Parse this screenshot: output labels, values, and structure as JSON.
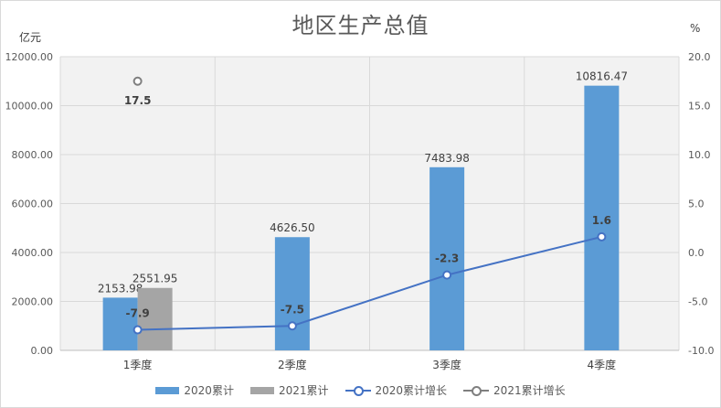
{
  "chart_data": {
    "type": "bar",
    "title": "地区生产总值",
    "y_unit_left": "亿元",
    "y_unit_right": "%",
    "categories": [
      "1季度",
      "2季度",
      "3季度",
      "4季度"
    ],
    "ylim_left": [
      0,
      12000
    ],
    "ylim_right": [
      -10,
      20
    ],
    "left_ticks": [
      "0.00",
      "2000.00",
      "4000.00",
      "6000.00",
      "8000.00",
      "10000.00",
      "12000.00"
    ],
    "right_ticks": [
      "-10.0",
      "-5.0",
      "0.0",
      "5.0",
      "10.0",
      "15.0",
      "20.0"
    ],
    "grid": true,
    "legend_position": "bottom",
    "colors": {
      "bar_2020": "#5b9bd5",
      "bar_2021": "#a5a5a5",
      "line_2020": "#4472c4",
      "line_2021": "#7f7f7f"
    },
    "series": [
      {
        "name": "2020累计",
        "kind": "bar",
        "axis": "left",
        "values": [
          2153.98,
          4626.5,
          7483.98,
          10816.47
        ],
        "labels": [
          "2153.98",
          "4626.50",
          "7483.98",
          "10816.47"
        ]
      },
      {
        "name": "2021累计",
        "kind": "bar",
        "axis": "left",
        "values": [
          2551.95,
          null,
          null,
          null
        ],
        "labels": [
          "2551.95",
          "",
          "",
          ""
        ]
      },
      {
        "name": "2020累计增长",
        "kind": "line",
        "axis": "right",
        "values": [
          -7.9,
          -7.5,
          -2.3,
          1.6
        ],
        "labels": [
          "-7.9",
          "-7.5",
          "-2.3",
          "1.6"
        ]
      },
      {
        "name": "2021累计增长",
        "kind": "line",
        "axis": "right",
        "values": [
          17.5,
          null,
          null,
          null
        ],
        "labels": [
          "17.5",
          "",
          "",
          ""
        ]
      }
    ]
  }
}
